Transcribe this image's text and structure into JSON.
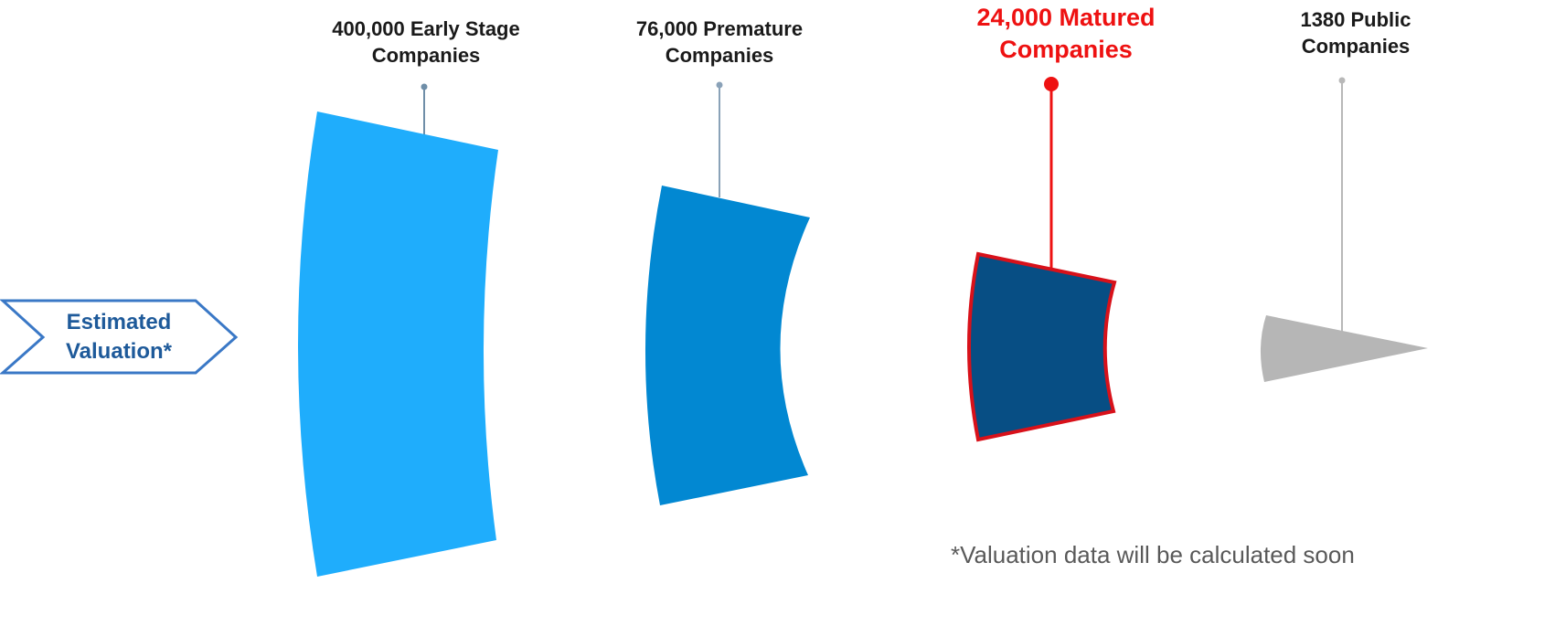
{
  "colors": {
    "early": "#1fadfc",
    "premature": "#0288d2",
    "matured": "#074e84",
    "matured_outline": "#d8111a",
    "public": "#b6b6b6",
    "valuation_text": "#1e5a9a",
    "valuation_outline": "#3a78c6",
    "highlight_label": "#ee1111"
  },
  "valuation_badge": {
    "line1": "Estimated",
    "line2": "Valuation*"
  },
  "stages": [
    {
      "line1": "400,000 Early Stage",
      "line2": "Companies",
      "highlighted": false
    },
    {
      "line1": "76,000 Premature",
      "line2": "Companies",
      "highlighted": false
    },
    {
      "line1": "24,000 Matured",
      "line2": "Companies",
      "highlighted": true
    },
    {
      "line1": "1380 Public",
      "line2": "Companies",
      "highlighted": false
    }
  ],
  "footnote": "*Valuation data will be calculated soon"
}
